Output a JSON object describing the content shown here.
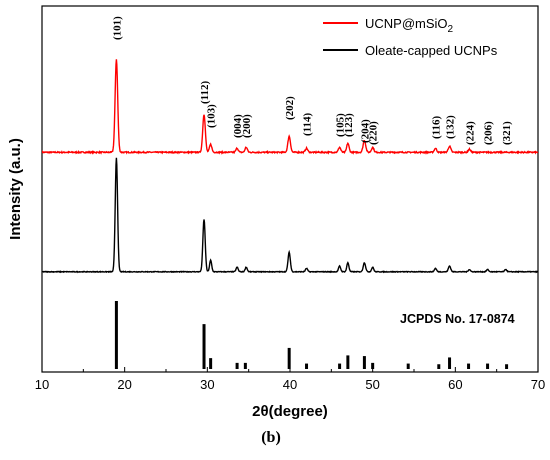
{
  "chart_data": {
    "type": "line",
    "xlabel": "2θ(degree)",
    "ylabel": "Intensity (a.u.)",
    "xlim": [
      10,
      70
    ],
    "x_ticks": [
      10,
      20,
      30,
      40,
      50,
      60,
      70
    ],
    "y_ticks_shown": false,
    "legend": {
      "placement": "top-right",
      "entries": [
        {
          "label": "UCNP@mSiO2",
          "label_main": "UCNP@mSiO",
          "label_sub": "2",
          "color": "#ff0000"
        },
        {
          "label": "Oleate-capped UCNPs",
          "color": "#000000"
        }
      ]
    },
    "peak_labels": [
      {
        "hkl": "(101)",
        "two_theta": 19.0
      },
      {
        "hkl": "(112)",
        "two_theta": 29.6
      },
      {
        "hkl": "(103)",
        "two_theta": 30.4
      },
      {
        "hkl": "(004)",
        "two_theta": 33.6
      },
      {
        "hkl": "(200)",
        "two_theta": 34.7
      },
      {
        "hkl": "(202)",
        "two_theta": 39.9
      },
      {
        "hkl": "(114)",
        "two_theta": 42.0
      },
      {
        "hkl": "(105)",
        "two_theta": 46.0
      },
      {
        "hkl": "(123)",
        "two_theta": 47.0
      },
      {
        "hkl": "(204)",
        "two_theta": 49.0
      },
      {
        "hkl": "(220)",
        "two_theta": 50.0
      },
      {
        "hkl": "(116)",
        "two_theta": 57.6
      },
      {
        "hkl": "(132)",
        "two_theta": 59.3
      },
      {
        "hkl": "(224)",
        "two_theta": 61.7
      },
      {
        "hkl": "(206)",
        "two_theta": 63.9
      },
      {
        "hkl": "(321)",
        "two_theta": 66.1
      }
    ],
    "series": [
      {
        "name": "UCNP@mSiO2",
        "color": "#ff0000",
        "baseline": 0.07,
        "noise": 0.012,
        "peaks": [
          {
            "x": 19.0,
            "h": 0.93,
            "w": 0.22
          },
          {
            "x": 29.6,
            "h": 0.38,
            "w": 0.22
          },
          {
            "x": 30.4,
            "h": 0.08,
            "w": 0.2
          },
          {
            "x": 33.6,
            "h": 0.04,
            "w": 0.2
          },
          {
            "x": 34.7,
            "h": 0.05,
            "w": 0.2
          },
          {
            "x": 39.9,
            "h": 0.16,
            "w": 0.22
          },
          {
            "x": 42.0,
            "h": 0.04,
            "w": 0.2
          },
          {
            "x": 46.0,
            "h": 0.05,
            "w": 0.2
          },
          {
            "x": 47.0,
            "h": 0.09,
            "w": 0.2
          },
          {
            "x": 49.0,
            "h": 0.12,
            "w": 0.22
          },
          {
            "x": 50.0,
            "h": 0.05,
            "w": 0.2
          },
          {
            "x": 57.6,
            "h": 0.04,
            "w": 0.2
          },
          {
            "x": 59.3,
            "h": 0.06,
            "w": 0.22
          },
          {
            "x": 61.7,
            "h": 0.03,
            "w": 0.2
          }
        ]
      },
      {
        "name": "Oleate-capped UCNPs",
        "color": "#000000",
        "baseline": 0.02,
        "noise": 0.006,
        "peaks": [
          {
            "x": 19.0,
            "h": 1.0,
            "w": 0.2
          },
          {
            "x": 29.6,
            "h": 0.46,
            "w": 0.2
          },
          {
            "x": 30.4,
            "h": 0.1,
            "w": 0.18
          },
          {
            "x": 33.6,
            "h": 0.04,
            "w": 0.18
          },
          {
            "x": 34.7,
            "h": 0.04,
            "w": 0.18
          },
          {
            "x": 39.9,
            "h": 0.17,
            "w": 0.2
          },
          {
            "x": 42.0,
            "h": 0.03,
            "w": 0.18
          },
          {
            "x": 46.0,
            "h": 0.05,
            "w": 0.18
          },
          {
            "x": 47.0,
            "h": 0.08,
            "w": 0.18
          },
          {
            "x": 49.0,
            "h": 0.08,
            "w": 0.2
          },
          {
            "x": 50.0,
            "h": 0.04,
            "w": 0.18
          },
          {
            "x": 57.6,
            "h": 0.03,
            "w": 0.18
          },
          {
            "x": 59.3,
            "h": 0.05,
            "w": 0.2
          },
          {
            "x": 61.7,
            "h": 0.02,
            "w": 0.18
          },
          {
            "x": 63.9,
            "h": 0.02,
            "w": 0.18
          },
          {
            "x": 66.1,
            "h": 0.02,
            "w": 0.18
          }
        ]
      }
    ],
    "reference": {
      "label": "JCPDS No. 17-0874",
      "bars": [
        {
          "x": 19.0,
          "h": 1.0
        },
        {
          "x": 29.6,
          "h": 0.66
        },
        {
          "x": 30.4,
          "h": 0.16
        },
        {
          "x": 33.6,
          "h": 0.09
        },
        {
          "x": 34.6,
          "h": 0.09
        },
        {
          "x": 39.9,
          "h": 0.31
        },
        {
          "x": 42.0,
          "h": 0.08
        },
        {
          "x": 46.0,
          "h": 0.08
        },
        {
          "x": 47.0,
          "h": 0.2
        },
        {
          "x": 49.0,
          "h": 0.19
        },
        {
          "x": 50.0,
          "h": 0.09
        },
        {
          "x": 54.3,
          "h": 0.08
        },
        {
          "x": 58.0,
          "h": 0.07
        },
        {
          "x": 59.3,
          "h": 0.17
        },
        {
          "x": 61.6,
          "h": 0.08
        },
        {
          "x": 63.9,
          "h": 0.08
        },
        {
          "x": 66.2,
          "h": 0.07
        }
      ]
    }
  },
  "panel_label": "(b)"
}
